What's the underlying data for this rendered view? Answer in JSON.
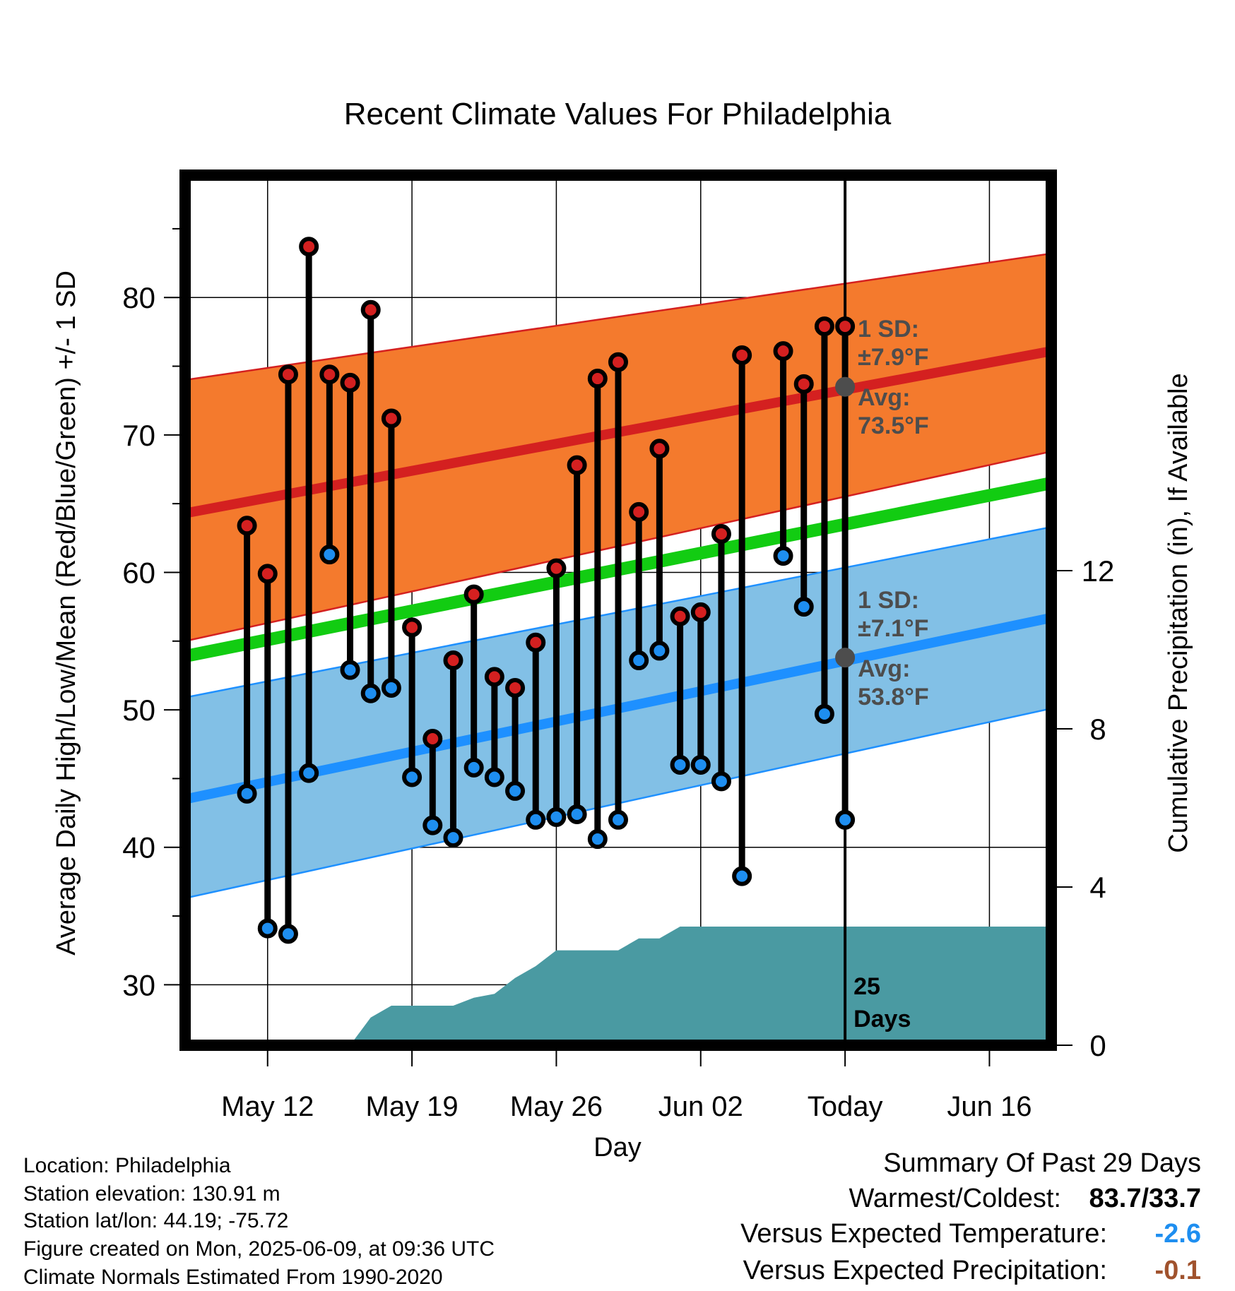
{
  "chart_data": {
    "type": "line",
    "title": "Recent Climate Values For Philadelphia",
    "xlabel": "Day",
    "ylabel": "Average Daily High/Low/Mean (Red/Blue/Green) +/- 1 SD",
    "y2label": "Cumulative Precipitation (in), If Available",
    "ylim": [
      25.6,
      88.9
    ],
    "y2lim": [
      0,
      22
    ],
    "xlim": [
      "2025-05-08",
      "2025-06-19"
    ],
    "x_ticks": [
      {
        "date": "2025-05-12",
        "label": "May 12"
      },
      {
        "date": "2025-05-19",
        "label": "May 19"
      },
      {
        "date": "2025-05-26",
        "label": "May 26"
      },
      {
        "date": "2025-06-02",
        "label": "Jun 02"
      },
      {
        "date": "2025-06-09",
        "label": "Today"
      },
      {
        "date": "2025-06-16",
        "label": "Jun 16"
      }
    ],
    "y_ticks": [
      "30",
      "40",
      "50",
      "60",
      "70",
      "80"
    ],
    "y2_ticks": [
      "0",
      "4",
      "8",
      "12"
    ],
    "today": "2025-06-09",
    "grid": true,
    "daily": [
      {
        "date": "2025-05-11",
        "high": 63.4,
        "low": 43.9
      },
      {
        "date": "2025-05-12",
        "high": 59.9,
        "low": 34.1
      },
      {
        "date": "2025-05-13",
        "high": 74.4,
        "low": 33.7
      },
      {
        "date": "2025-05-14",
        "high": 83.7,
        "low": 45.4
      },
      {
        "date": "2025-05-15",
        "high": 74.4,
        "low": 61.3
      },
      {
        "date": "2025-05-16",
        "high": 73.8,
        "low": 52.9
      },
      {
        "date": "2025-05-17",
        "high": 79.1,
        "low": 51.2
      },
      {
        "date": "2025-05-18",
        "high": 71.2,
        "low": 51.6
      },
      {
        "date": "2025-05-19",
        "high": 56.0,
        "low": 45.1
      },
      {
        "date": "2025-05-20",
        "high": 47.9,
        "low": 41.6
      },
      {
        "date": "2025-05-21",
        "high": 53.6,
        "low": 40.7
      },
      {
        "date": "2025-05-22",
        "high": 58.4,
        "low": 45.8
      },
      {
        "date": "2025-05-23",
        "high": 52.4,
        "low": 45.1
      },
      {
        "date": "2025-05-24",
        "high": 51.6,
        "low": 44.1
      },
      {
        "date": "2025-05-25",
        "high": 54.9,
        "low": 42.0
      },
      {
        "date": "2025-05-26",
        "high": 60.3,
        "low": 42.2
      },
      {
        "date": "2025-05-27",
        "high": 67.8,
        "low": 42.4
      },
      {
        "date": "2025-05-28",
        "high": 74.1,
        "low": 40.6
      },
      {
        "date": "2025-05-29",
        "high": 75.3,
        "low": 42.0
      },
      {
        "date": "2025-05-30",
        "high": 64.4,
        "low": 53.6
      },
      {
        "date": "2025-05-31",
        "high": 69.0,
        "low": 54.3
      },
      {
        "date": "2025-06-01",
        "high": 56.8,
        "low": 46.0
      },
      {
        "date": "2025-06-02",
        "high": 57.1,
        "low": 46.0
      },
      {
        "date": "2025-06-03",
        "high": 62.8,
        "low": 44.8
      },
      {
        "date": "2025-06-04",
        "high": 75.8,
        "low": 37.9
      },
      {
        "date": "2025-06-06",
        "high": 76.1,
        "low": 61.2
      },
      {
        "date": "2025-06-07",
        "high": 73.7,
        "low": 57.5
      },
      {
        "date": "2025-06-08",
        "high": 77.9,
        "low": 49.7
      },
      {
        "date": "2025-06-09",
        "high": 77.9,
        "low": 42.0
      }
    ],
    "normals": {
      "dates": [
        "2025-05-08",
        "2025-06-19"
      ],
      "high_mean": [
        64.3,
        76.1
      ],
      "high_upper": [
        74.0,
        83.2
      ],
      "high_lower": [
        55.0,
        68.8
      ],
      "low_mean": [
        43.5,
        56.7
      ],
      "low_upper": [
        50.9,
        63.3
      ],
      "low_lower": [
        36.3,
        50.1
      ],
      "mean": [
        53.9,
        66.5
      ]
    },
    "precip": {
      "dates": [
        "2025-05-08",
        "2025-05-16",
        "2025-05-17",
        "2025-05-18",
        "2025-05-21",
        "2025-05-22",
        "2025-05-23",
        "2025-05-24",
        "2025-05-25",
        "2025-05-26",
        "2025-05-29",
        "2025-05-30",
        "2025-05-31",
        "2025-06-01",
        "2025-06-19"
      ],
      "values": [
        0,
        0,
        0.7,
        1.0,
        1.0,
        1.2,
        1.3,
        1.7,
        2.0,
        2.4,
        2.4,
        2.7,
        2.7,
        3.0,
        3.0
      ]
    },
    "annotations": {
      "high_sd": {
        "label": "1 SD:",
        "value": "±7.9°F"
      },
      "high_avg": {
        "label": "Avg:",
        "value": "73.5°F",
        "y": 73.5
      },
      "low_sd": {
        "label": "1 SD:",
        "value": "±7.1°F"
      },
      "low_avg": {
        "label": "Avg:",
        "value": "53.8°F",
        "y": 53.8
      },
      "days_count": "25",
      "days_label": "Days"
    },
    "colors": {
      "high_band": "#f47a2d",
      "high_line": "#d42020",
      "low_band": "#82c0e6",
      "low_line": "#1e90ff",
      "mean_line": "#12cc12",
      "precip": "#4a9aa2",
      "high_dot": "#d42020",
      "low_dot": "#1e8ef0",
      "avg_marker": "#4d4d4d",
      "annotation_text": "#4d4d4d"
    }
  },
  "footer": {
    "location": "Location: Philadelphia",
    "elevation": "Station elevation: 130.91 m",
    "latlon": "Station lat/lon: 44.19; -75.72",
    "created": "Figure created on Mon, 2025-06-09, at 09:36 UTC",
    "normals": "Climate Normals Estimated From 1990-2020"
  },
  "summary": {
    "title": "Summary Of Past 29 Days",
    "warm_cold_label": "Warmest/Coldest:",
    "warm_cold_value": "83.7/33.7",
    "temp_label": "Versus Expected Temperature:",
    "temp_value": "-2.6",
    "temp_color": "#1e8ef0",
    "precip_label": "Versus Expected Precipitation:",
    "precip_value": "-0.1",
    "precip_color": "#a0522d"
  }
}
